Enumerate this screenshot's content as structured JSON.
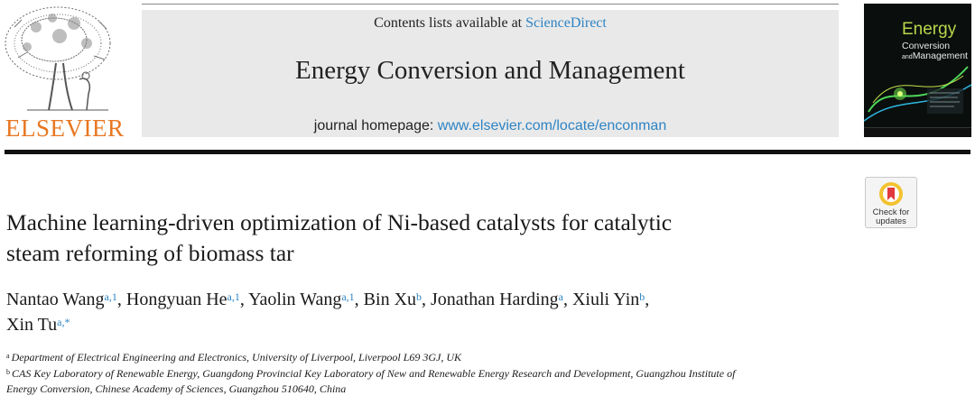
{
  "publisher": {
    "name": "ELSEVIER",
    "color": "#e87722"
  },
  "banner": {
    "contents_prefix": "Contents lists available at ",
    "contents_link": "ScienceDirect",
    "journal_title": "Energy Conversion and Management",
    "homepage_prefix": "journal homepage: ",
    "homepage_url": "www.elsevier.com/locate/enconman",
    "link_color": "#2e84c4"
  },
  "cover": {
    "title": "Energy",
    "subtitle_1": "Conversion",
    "subtitle_2": "and",
    "subtitle_3": "Management"
  },
  "crossmark": {
    "label_1": "Check for",
    "label_2": "updates"
  },
  "article": {
    "title_line_1": "Machine learning-driven optimization of Ni-based catalysts for catalytic",
    "title_line_2": "steam reforming of biomass tar",
    "authors": [
      {
        "name": "Nantao Wang",
        "sup": "a,1"
      },
      {
        "name": "Hongyuan He",
        "sup": "a,1"
      },
      {
        "name": "Yaolin Wang",
        "sup": "a,1"
      },
      {
        "name": "Bin Xu",
        "sup": "b"
      },
      {
        "name": "Jonathan Harding",
        "sup": "a"
      },
      {
        "name": "Xiuli Yin",
        "sup": "b"
      },
      {
        "name": "Xin Tu",
        "sup": "a,*"
      }
    ],
    "affiliations": [
      {
        "key": "a",
        "text": "Department of Electrical Engineering and Electronics, University of Liverpool, Liverpool L69 3GJ, UK"
      },
      {
        "key": "b",
        "text_line_1": "CAS Key Laboratory of Renewable Energy, Guangdong Provincial Key Laboratory of New and Renewable Energy Research and Development, Guangzhou Institute of",
        "text_line_2": "Energy Conversion, Chinese Academy of Sciences, Guangzhou 510640, China"
      }
    ]
  }
}
